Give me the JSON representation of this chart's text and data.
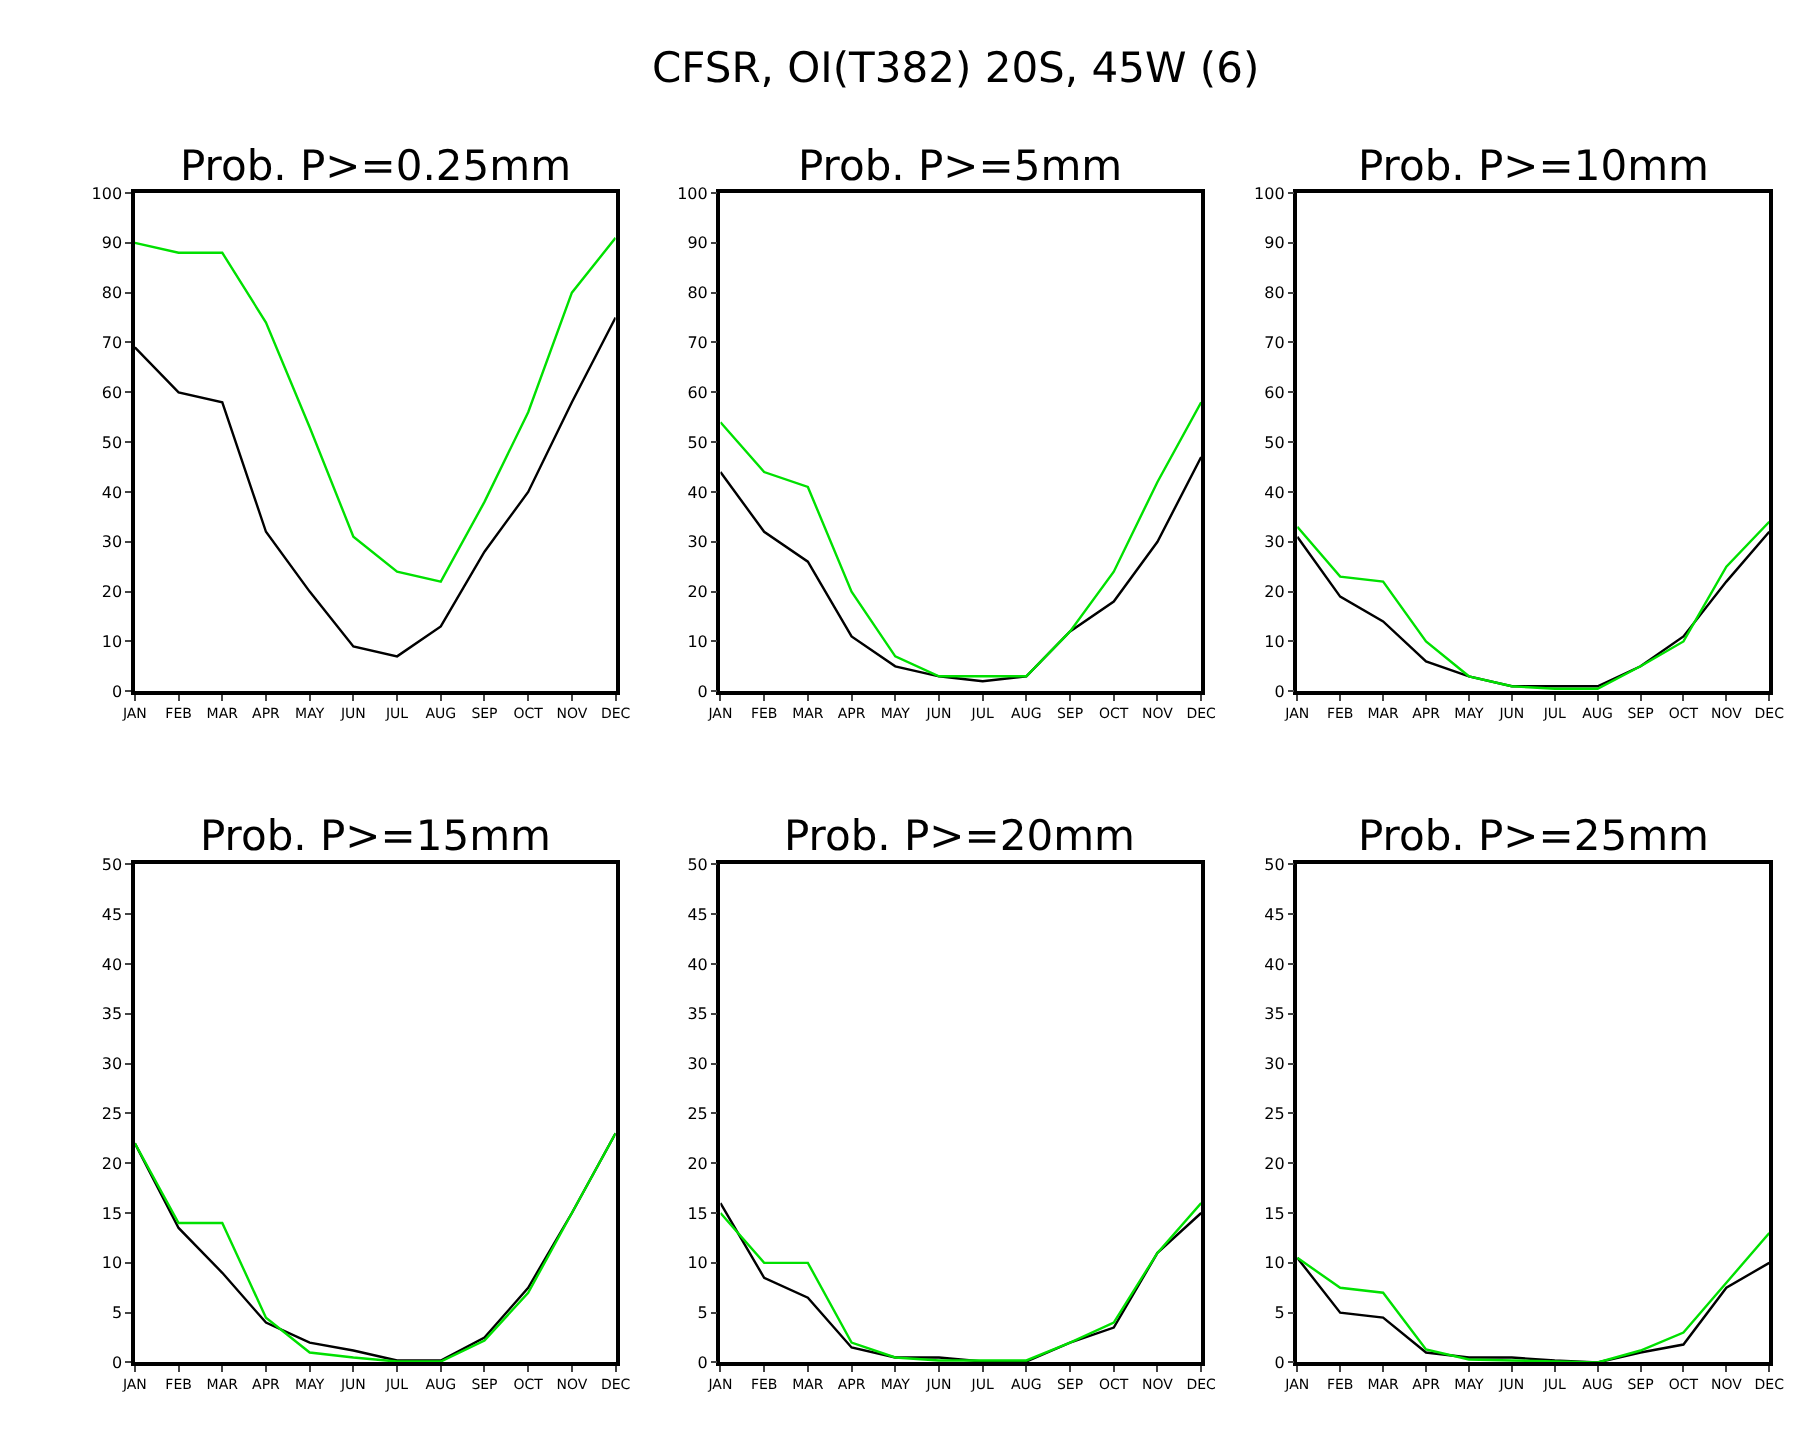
{
  "chart_data": [
    {
      "type": "line",
      "title": "Prob. P>=0.25mm",
      "annotations": [
        "CFSR, OI(T382) 20S, 45W (6)"
      ],
      "categories": [
        "JAN",
        "FEB",
        "MAR",
        "APR",
        "MAY",
        "JUN",
        "JUL",
        "AUG",
        "SEP",
        "OCT",
        "NOV",
        "DEC"
      ],
      "ylim": [
        0,
        100
      ],
      "yticks": [
        0,
        10,
        20,
        30,
        40,
        50,
        60,
        70,
        80,
        90,
        100
      ],
      "marker": "none",
      "line_style": "solid",
      "series": [
        {
          "color": "#000000",
          "values": [
            69,
            60,
            58,
            32,
            20,
            9,
            7,
            13,
            28,
            40,
            58,
            75
          ]
        },
        {
          "color": "#00e000",
          "values": [
            90,
            88,
            88,
            74,
            53,
            31,
            24,
            22,
            38,
            56,
            80,
            91
          ]
        }
      ]
    },
    {
      "type": "line",
      "title": "Prob. P>=5mm",
      "categories": [
        "JAN",
        "FEB",
        "MAR",
        "APR",
        "MAY",
        "JUN",
        "JUL",
        "AUG",
        "SEP",
        "OCT",
        "NOV",
        "DEC"
      ],
      "ylim": [
        0,
        100
      ],
      "yticks": [
        0,
        10,
        20,
        30,
        40,
        50,
        60,
        70,
        80,
        90,
        100
      ],
      "marker": "none",
      "line_style": "solid",
      "series": [
        {
          "color": "#000000",
          "values": [
            44,
            32,
            26,
            11,
            5,
            3,
            2,
            3,
            12,
            18,
            30,
            47
          ]
        },
        {
          "color": "#00e000",
          "values": [
            54,
            44,
            41,
            20,
            7,
            3,
            3,
            3,
            12,
            24,
            42,
            58
          ]
        }
      ]
    },
    {
      "type": "line",
      "title": "Prob. P>=10mm",
      "categories": [
        "JAN",
        "FEB",
        "MAR",
        "APR",
        "MAY",
        "JUN",
        "JUL",
        "AUG",
        "SEP",
        "OCT",
        "NOV",
        "DEC"
      ],
      "ylim": [
        0,
        100
      ],
      "yticks": [
        0,
        10,
        20,
        30,
        40,
        50,
        60,
        70,
        80,
        90,
        100
      ],
      "marker": "none",
      "line_style": "solid",
      "series": [
        {
          "color": "#000000",
          "values": [
            31,
            19,
            14,
            6,
            3,
            1,
            1,
            1,
            5,
            11,
            22,
            32
          ]
        },
        {
          "color": "#00e000",
          "values": [
            33,
            23,
            22,
            10,
            3,
            1,
            0.5,
            0.5,
            5,
            10,
            25,
            34
          ]
        }
      ]
    },
    {
      "type": "line",
      "title": "Prob. P>=15mm",
      "categories": [
        "JAN",
        "FEB",
        "MAR",
        "APR",
        "MAY",
        "JUN",
        "JUL",
        "AUG",
        "SEP",
        "OCT",
        "NOV",
        "DEC"
      ],
      "ylim": [
        0,
        50
      ],
      "yticks": [
        0,
        5,
        10,
        15,
        20,
        25,
        30,
        35,
        40,
        45,
        50
      ],
      "marker": "none",
      "line_style": "solid",
      "series": [
        {
          "color": "#000000",
          "values": [
            22,
            13.5,
            9,
            4,
            2,
            1.2,
            0.2,
            0.2,
            2.5,
            7.5,
            15,
            23
          ]
        },
        {
          "color": "#00e000",
          "values": [
            22,
            14,
            14,
            4.5,
            1,
            0.5,
            0.1,
            0.1,
            2.2,
            7,
            15,
            23
          ]
        }
      ]
    },
    {
      "type": "line",
      "title": "Prob. P>=20mm",
      "categories": [
        "JAN",
        "FEB",
        "MAR",
        "APR",
        "MAY",
        "JUN",
        "JUL",
        "AUG",
        "SEP",
        "OCT",
        "NOV",
        "DEC"
      ],
      "ylim": [
        0,
        50
      ],
      "yticks": [
        0,
        5,
        10,
        15,
        20,
        25,
        30,
        35,
        40,
        45,
        50
      ],
      "marker": "none",
      "line_style": "solid",
      "series": [
        {
          "color": "#000000",
          "values": [
            16,
            8.5,
            6.5,
            1.5,
            0.5,
            0.5,
            0.1,
            0.1,
            2,
            3.5,
            11,
            15
          ]
        },
        {
          "color": "#00e000",
          "values": [
            15,
            10,
            10,
            2,
            0.5,
            0.2,
            0.2,
            0.2,
            2,
            4,
            11,
            16
          ]
        }
      ]
    },
    {
      "type": "line",
      "title": "Prob. P>=25mm",
      "categories": [
        "JAN",
        "FEB",
        "MAR",
        "APR",
        "MAY",
        "JUN",
        "JUL",
        "AUG",
        "SEP",
        "OCT",
        "NOV",
        "DEC"
      ],
      "ylim": [
        0,
        50
      ],
      "yticks": [
        0,
        5,
        10,
        15,
        20,
        25,
        30,
        35,
        40,
        45,
        50
      ],
      "marker": "none",
      "line_style": "solid",
      "series": [
        {
          "color": "#000000",
          "values": [
            10.5,
            5,
            4.5,
            1,
            0.5,
            0.5,
            0.2,
            0,
            1,
            1.8,
            7.5,
            10
          ]
        },
        {
          "color": "#00e000",
          "values": [
            10.5,
            7.5,
            7,
            1.3,
            0.3,
            0.2,
            0.1,
            0,
            1.2,
            3,
            8,
            13
          ]
        }
      ]
    }
  ]
}
